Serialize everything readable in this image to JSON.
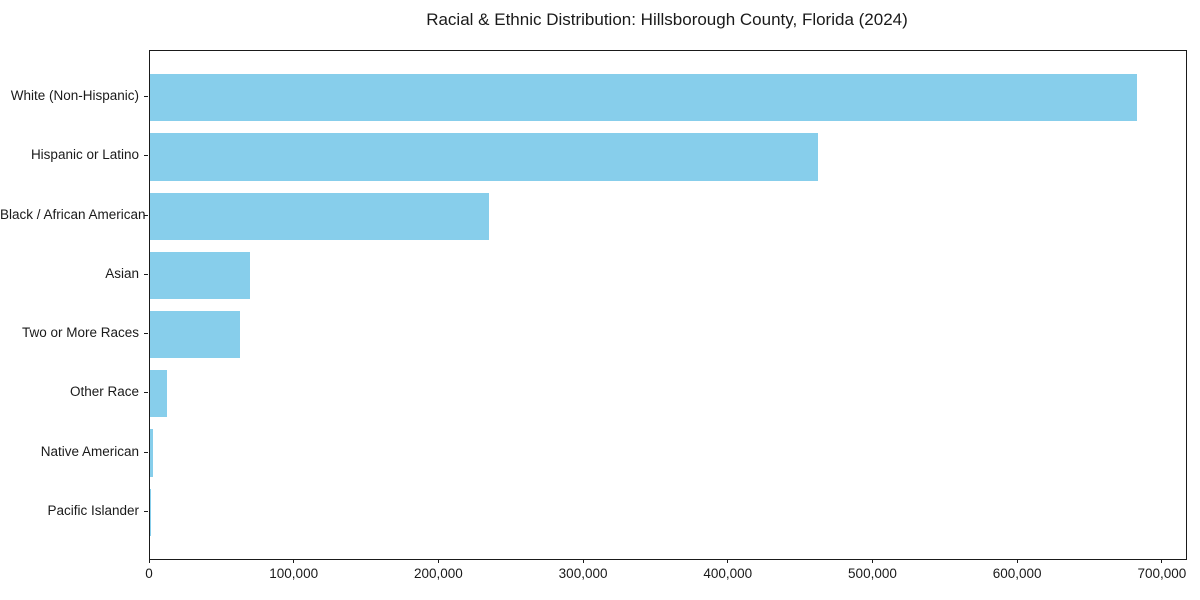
{
  "chart_data": {
    "type": "bar",
    "orientation": "horizontal",
    "title": "Racial & Ethnic Distribution: Hillsborough County, Florida (2024)",
    "xlabel": "",
    "ylabel": "",
    "categories": [
      "White (Non-Hispanic)",
      "Hispanic or Latino",
      "Black / African American",
      "Asian",
      "Two or More Races",
      "Other Race",
      "Native American",
      "Pacific Islander"
    ],
    "values": [
      682000,
      462000,
      234000,
      69000,
      62000,
      12000,
      2000,
      1000
    ],
    "bar_color": "#87CEEB",
    "xlim": [
      0,
      716000
    ],
    "x_ticks": [
      0,
      100000,
      200000,
      300000,
      400000,
      500000,
      600000,
      700000
    ],
    "x_tick_labels": [
      "0",
      "100,000",
      "200,000",
      "300,000",
      "400,000",
      "500,000",
      "600,000",
      "700,000"
    ],
    "grid": false,
    "legend": null,
    "text_color": "#1a1a1a",
    "spine_color": "#1a1a1a",
    "background_color": "#ffffff"
  }
}
